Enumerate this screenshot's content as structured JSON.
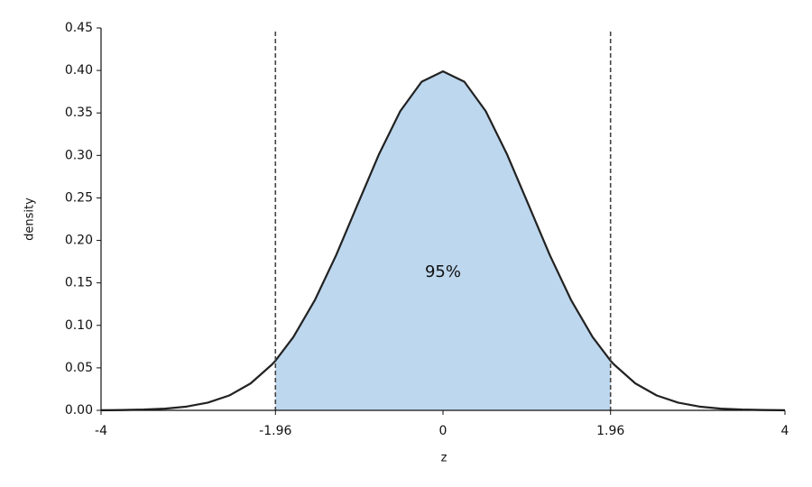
{
  "chart_data": {
    "type": "line",
    "xlabel": "z",
    "ylabel": "density",
    "x": [
      -4,
      -3.75,
      -3.5,
      -3.25,
      -3,
      -2.75,
      -2.5,
      -2.25,
      -2,
      -1.96,
      -1.75,
      -1.5,
      -1.25,
      -1,
      -0.75,
      -0.5,
      -0.25,
      0,
      0.25,
      0.5,
      0.75,
      1,
      1.25,
      1.5,
      1.75,
      1.96,
      2,
      2.25,
      2.5,
      2.75,
      3,
      3.25,
      3.5,
      3.75,
      4
    ],
    "series": [
      {
        "color": "#222222",
        "values": [
          0.0001,
          0.0004,
          0.0009,
          0.002,
          0.0044,
          0.0091,
          0.0175,
          0.0317,
          0.054,
          0.0584,
          0.0863,
          0.1295,
          0.1826,
          0.242,
          0.3011,
          0.3521,
          0.3867,
          0.3989,
          0.3867,
          0.3521,
          0.3011,
          0.242,
          0.1826,
          0.1295,
          0.0863,
          0.0584,
          0.054,
          0.0317,
          0.0175,
          0.0091,
          0.0044,
          0.002,
          0.0009,
          0.0004,
          0.0001
        ]
      }
    ],
    "shade_range": [
      -1.96,
      1.96
    ],
    "shade_color": "#bdd7ee",
    "vlines": [
      -1.96,
      1.96
    ],
    "vline_color": "#444444",
    "annotation": "95%",
    "xlim": [
      -4,
      4
    ],
    "xticks": [
      -4,
      -1.96,
      0,
      1.96,
      4
    ],
    "ylim": [
      0,
      0.45
    ],
    "yticks": [
      {
        "value": 0,
        "label": "0.00"
      },
      {
        "value": 0.05,
        "label": "0.05"
      },
      {
        "value": 0.1,
        "label": "0.10"
      },
      {
        "value": 0.15,
        "label": "0.15"
      },
      {
        "value": 0.2,
        "label": "0.20"
      },
      {
        "value": 0.25,
        "label": "0.25"
      },
      {
        "value": 0.3,
        "label": "0.30"
      },
      {
        "value": 0.35,
        "label": "0.35"
      },
      {
        "value": 0.4,
        "label": "0.40"
      },
      {
        "value": 0.45,
        "label": "0.45"
      }
    ]
  }
}
